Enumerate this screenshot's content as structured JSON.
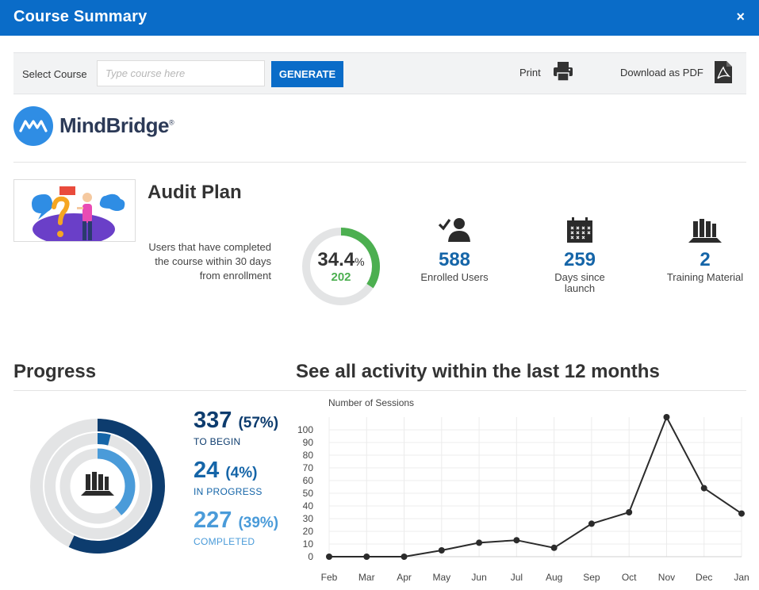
{
  "window": {
    "title": "Course Summary",
    "close_label": "×"
  },
  "toolbar": {
    "select_label": "Select Course",
    "search_placeholder": "Type course here",
    "generate_label": "GENERATE",
    "print_label": "Print",
    "pdf_label": "Download as PDF"
  },
  "logo": {
    "text": "MindBridge",
    "reg": "®"
  },
  "course": {
    "title": "Audit Plan",
    "completion_desc": "Users that have completed the course within 30 days from enrollment",
    "completion_pct": "34.4",
    "completion_pct_unit": "%",
    "completion_fraction": 0.344,
    "completion_count": "202"
  },
  "stats": [
    {
      "icon": "user-check-icon",
      "value": "588",
      "label": "Enrolled Users"
    },
    {
      "icon": "calendar-icon",
      "value": "259",
      "label": "Days since launch"
    },
    {
      "icon": "books-icon",
      "value": "2",
      "label": "Training Material"
    }
  ],
  "progress": {
    "title": "Progress",
    "items": [
      {
        "count": "337",
        "pct": "(57%)",
        "label": "TO BEGIN",
        "color": "#0d3c6e",
        "fraction": 0.57
      },
      {
        "count": "24",
        "pct": "(4%)",
        "label": "IN PROGRESS",
        "color": "#1565a8",
        "fraction": 0.04
      },
      {
        "count": "227",
        "pct": "(39%)",
        "label": "COMPLETED",
        "color": "#4a9bd9",
        "fraction": 0.39
      }
    ]
  },
  "activity": {
    "title": "See all activity within the last 12 months"
  },
  "chart_data": {
    "type": "line",
    "title": "",
    "ylabel": "Number of Sessions",
    "xlabel": "",
    "categories": [
      "Feb",
      "Mar",
      "Apr",
      "May",
      "Jun",
      "Jul",
      "Aug",
      "Sep",
      "Oct",
      "Nov",
      "Dec",
      "Jan"
    ],
    "series": [
      {
        "values": [
          0,
          0,
          0,
          5,
          11,
          13,
          7,
          26,
          35,
          110,
          54,
          34
        ]
      }
    ],
    "ylim": [
      0,
      110
    ],
    "yticks": [
      0,
      10,
      20,
      30,
      40,
      50,
      60,
      70,
      80,
      90,
      100
    ],
    "grid": true,
    "line_color": "#2b2b2b"
  }
}
